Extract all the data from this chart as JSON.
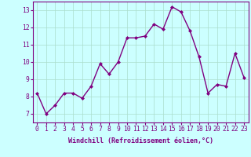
{
  "x": [
    0,
    1,
    2,
    3,
    4,
    5,
    6,
    7,
    8,
    9,
    10,
    11,
    12,
    13,
    14,
    15,
    16,
    17,
    18,
    19,
    20,
    21,
    22,
    23
  ],
  "y": [
    8.2,
    7.0,
    7.5,
    8.2,
    8.2,
    7.9,
    8.6,
    9.9,
    9.3,
    10.0,
    11.4,
    11.4,
    11.5,
    12.2,
    11.9,
    13.2,
    12.9,
    11.8,
    10.3,
    8.2,
    8.7,
    8.6,
    10.5,
    9.1
  ],
  "line_color": "#800080",
  "marker": "D",
  "marker_size": 2.0,
  "line_width": 1.0,
  "bg_color": "#ccffff",
  "grid_color": "#aaddcc",
  "xlabel": "Windchill (Refroidissement éolien,°C)",
  "ylabel_ticks": [
    7,
    8,
    9,
    10,
    11,
    12,
    13
  ],
  "xlabel_fontsize": 6.0,
  "tick_fontsize": 5.8,
  "tick_color": "#800080",
  "label_color": "#800080",
  "ylim": [
    6.5,
    13.5
  ],
  "xlim": [
    -0.5,
    23.5
  ]
}
